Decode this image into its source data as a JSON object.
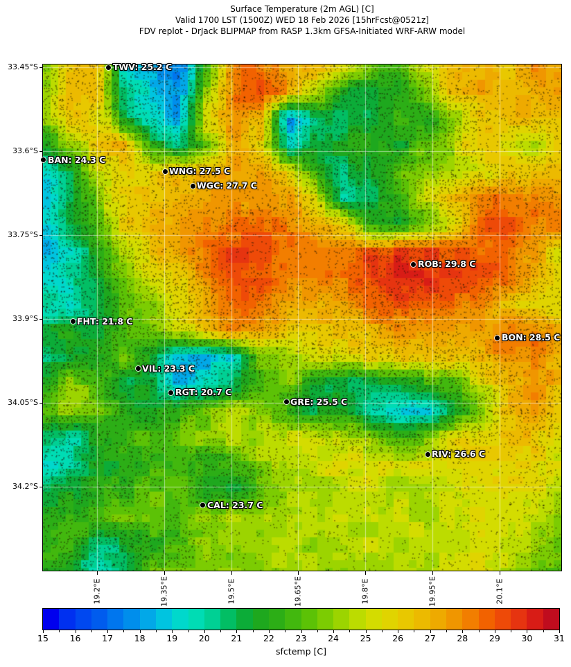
{
  "title": {
    "line1": "Surface Temperature (2m AGL) [C]",
    "line2": "Valid 1700 LST (1500Z) WED 18 Feb 2026 [15hrFcst@0521z]",
    "line3": "FDV replot - DrJack BLIPMAP from RASP 1.3km GFSA-Initiated WRF-ARW model"
  },
  "axes": {
    "y_ticks": [
      {
        "label": "33.45°S",
        "f": 0.0055
      },
      {
        "label": "33.6°S",
        "f": 0.171
      },
      {
        "label": "33.75°S",
        "f": 0.337
      },
      {
        "label": "33.9°S",
        "f": 0.503
      },
      {
        "label": "34.05°S",
        "f": 0.668
      },
      {
        "label": "34.2°S",
        "f": 0.834
      }
    ],
    "x_ticks": [
      {
        "label": "19.2°E",
        "f": 0.1043
      },
      {
        "label": "19.35°E",
        "f": 0.2339
      },
      {
        "label": "19.5°E",
        "f": 0.3636
      },
      {
        "label": "19.65°E",
        "f": 0.492
      },
      {
        "label": "19.8°E",
        "f": 0.6217
      },
      {
        "label": "19.95°E",
        "f": 0.7513
      },
      {
        "label": "20.1°E",
        "f": 0.881
      }
    ]
  },
  "colorbar": {
    "label": "sfctemp [C]",
    "ticks": [
      15,
      16,
      17,
      18,
      19,
      20,
      21,
      22,
      23,
      24,
      25,
      26,
      27,
      28,
      29,
      30,
      31
    ],
    "range": [
      15,
      31
    ],
    "cell_colors": [
      "#0000ee",
      "#0030f0",
      "#0048f0",
      "#005cee",
      "#0076ee",
      "#008eec",
      "#02a8e8",
      "#00c4e0",
      "#00d8cc",
      "#00dcb4",
      "#00d094",
      "#02be64",
      "#0cac38",
      "#1ea81e",
      "#2cae16",
      "#42b80e",
      "#5cc206",
      "#7ccc02",
      "#9cd400",
      "#bcdc00",
      "#d4dc00",
      "#e0d400",
      "#e8c800",
      "#ecba00",
      "#eeaa00",
      "#f09600",
      "#f27e00",
      "#f26200",
      "#ee4a08",
      "#e63410",
      "#d81c16",
      "#c00c1e"
    ]
  },
  "chart_data": {
    "type": "heatmap",
    "title": "Surface Temperature (2m AGL) [C]",
    "colorbar_label": "sfctemp [C]",
    "colorbar_range": [
      15,
      31
    ],
    "x_tick_labels": [
      "19.2°E",
      "19.35°E",
      "19.5°E",
      "19.65°E",
      "19.8°E",
      "19.95°E",
      "20.1°E"
    ],
    "y_tick_labels": [
      "33.45°S",
      "33.6°S",
      "33.75°S",
      "33.9°S",
      "34.05°S",
      "34.2°S"
    ],
    "grid_on": true,
    "stations": [
      {
        "name": "TWV",
        "temp_c": 25.2,
        "label": "TWV: 25.2 C",
        "fx": 0.127,
        "fy": 0.0055
      },
      {
        "name": "BAN",
        "temp_c": 24.3,
        "label": "BAN: 24.3 C",
        "fx": 0.0013,
        "fy": 0.189
      },
      {
        "name": "WNG",
        "temp_c": 27.5,
        "label": "WNG: 27.5 C",
        "fx": 0.2353,
        "fy": 0.211
      },
      {
        "name": "WGC",
        "temp_c": 27.7,
        "label": "WGC: 27.7 C",
        "fx": 0.2888,
        "fy": 0.24
      },
      {
        "name": "ROB",
        "temp_c": 29.8,
        "label": "ROB: 29.8 C",
        "fx": 0.7152,
        "fy": 0.395
      },
      {
        "name": "FHT",
        "temp_c": 21.8,
        "label": "FHT: 21.8 C",
        "fx": 0.0575,
        "fy": 0.508
      },
      {
        "name": "BON",
        "temp_c": 28.5,
        "label": "BON: 28.5 C",
        "fx": 0.877,
        "fy": 0.54
      },
      {
        "name": "VIL",
        "temp_c": 23.3,
        "label": "VIL: 23.3 C",
        "fx": 0.1832,
        "fy": 0.601
      },
      {
        "name": "RGT",
        "temp_c": 20.7,
        "label": "RGT: 20.7 C",
        "fx": 0.2473,
        "fy": 0.648
      },
      {
        "name": "GRE",
        "temp_c": 25.5,
        "label": "GRE: 25.5 C",
        "fx": 0.4693,
        "fy": 0.667
      },
      {
        "name": "RIV",
        "temp_c": 26.6,
        "label": "RIV: 26.6 C",
        "fx": 0.742,
        "fy": 0.77
      },
      {
        "name": "CAL",
        "temp_c": 23.7,
        "label": "CAL: 23.7 C",
        "fx": 0.3088,
        "fy": 0.871
      }
    ],
    "temp_grid_approx_c": [
      [
        23,
        26.5,
        27,
        19,
        18.5,
        17.5,
        22,
        28.5,
        28.5,
        27,
        27,
        26,
        23.5,
        22.5,
        25.5,
        26.5,
        27,
        26.5,
        28,
        27.5
      ],
      [
        24,
        26.5,
        26.5,
        20,
        19,
        17.5,
        24,
        28.5,
        29.5,
        27.5,
        25,
        21.5,
        21.5,
        22,
        23.5,
        26.5,
        27.5,
        26.5,
        27,
        28
      ],
      [
        24,
        26.5,
        26,
        21,
        19.5,
        18,
        26,
        28,
        26.5,
        17.5,
        20.5,
        21,
        21,
        22.5,
        21.5,
        23.5,
        26,
        26.5,
        27,
        26.5
      ],
      [
        21,
        24,
        26.5,
        27,
        22,
        20,
        23,
        27.5,
        26,
        19.5,
        21,
        21.5,
        22.5,
        21.5,
        23,
        24.5,
        26.5,
        25.5,
        24.5,
        26
      ],
      [
        19.5,
        21,
        25,
        26.5,
        26,
        26.5,
        27,
        27.5,
        27.5,
        26,
        22.5,
        20.5,
        21.5,
        23,
        24,
        24.5,
        25,
        26,
        26.5,
        26.5
      ],
      [
        18.5,
        20.5,
        24,
        26,
        26.5,
        27,
        27.5,
        27.5,
        28,
        27.5,
        25.5,
        19.5,
        21,
        22.5,
        25,
        26.5,
        28,
        28.5,
        28,
        27
      ],
      [
        19,
        21,
        23,
        26,
        27,
        27.5,
        28,
        28.5,
        29,
        28,
        27.5,
        26,
        22,
        21.5,
        22.5,
        25,
        29,
        29,
        28.5,
        28
      ],
      [
        18,
        19.5,
        22,
        25,
        26.5,
        27.5,
        28.5,
        29.5,
        29,
        28.5,
        28,
        28.5,
        29,
        29.5,
        29.5,
        29,
        29,
        28.5,
        27.5,
        25.5
      ],
      [
        19,
        20,
        21.5,
        24,
        25,
        26,
        28,
        29.5,
        29,
        28.5,
        28,
        28.5,
        29.5,
        30.5,
        30,
        29.5,
        29,
        28.5,
        27,
        25.5
      ],
      [
        20,
        19,
        21,
        23.5,
        24,
        25.5,
        27.5,
        29,
        28.5,
        27.5,
        27,
        27.5,
        28.5,
        29.5,
        29,
        28.5,
        28,
        26.5,
        26,
        25.5
      ],
      [
        21.5,
        22,
        21,
        23,
        24,
        25,
        26.5,
        28,
        27.5,
        26.5,
        26.5,
        26.5,
        27,
        27.5,
        27.5,
        27.5,
        27.5,
        28.5,
        28.5,
        27
      ],
      [
        20,
        21.5,
        22,
        23.5,
        21,
        18.5,
        18.5,
        19.5,
        23.5,
        24,
        25,
        25.5,
        26,
        26.5,
        26.5,
        26.5,
        27,
        28,
        28,
        26.5
      ],
      [
        22,
        24.5,
        23,
        21,
        21.5,
        18,
        19.5,
        21,
        23,
        24,
        21.5,
        20.5,
        21,
        21.5,
        22,
        23,
        25,
        26.5,
        28,
        26.5
      ],
      [
        23.5,
        24,
        23.5,
        22,
        21.5,
        22.5,
        23.5,
        24.5,
        24,
        22.5,
        21,
        22,
        20,
        18.5,
        19,
        21,
        23.5,
        26.5,
        28,
        26
      ],
      [
        21,
        19.5,
        22,
        22.5,
        23,
        23.5,
        24,
        24.5,
        24.5,
        25,
        25.5,
        24.5,
        24,
        23,
        23.5,
        25.5,
        26,
        26.5,
        26.5,
        25.5
      ],
      [
        19.5,
        20,
        22,
        21.5,
        22.5,
        23,
        22,
        22.5,
        24,
        24.5,
        25,
        25.5,
        25.5,
        25,
        25.5,
        25.5,
        26,
        26,
        26,
        25
      ],
      [
        21,
        21.5,
        22,
        22.5,
        23,
        23.5,
        21.5,
        21.5,
        23,
        24,
        24.5,
        24.5,
        25,
        24.5,
        24.5,
        25,
        25.5,
        25.5,
        25.5,
        24.5
      ],
      [
        22,
        22.5,
        23,
        23.5,
        23.5,
        23,
        24,
        24.5,
        24,
        24.5,
        24.5,
        25,
        24.5,
        25,
        24.5,
        25,
        25.5,
        25,
        24.5,
        23.5
      ],
      [
        22.5,
        23,
        20.5,
        21,
        22,
        22.5,
        24,
        24,
        24.5,
        24.5,
        24,
        24.5,
        25,
        24.5,
        25,
        24.5,
        25.5,
        25,
        24.5,
        23
      ],
      [
        22,
        21.5,
        19.5,
        20.5,
        23.5,
        24,
        23.5,
        24,
        24,
        24.5,
        24.5,
        24,
        24.5,
        24.5,
        24.5,
        25,
        25.5,
        24.5,
        23.5,
        23
      ]
    ]
  }
}
